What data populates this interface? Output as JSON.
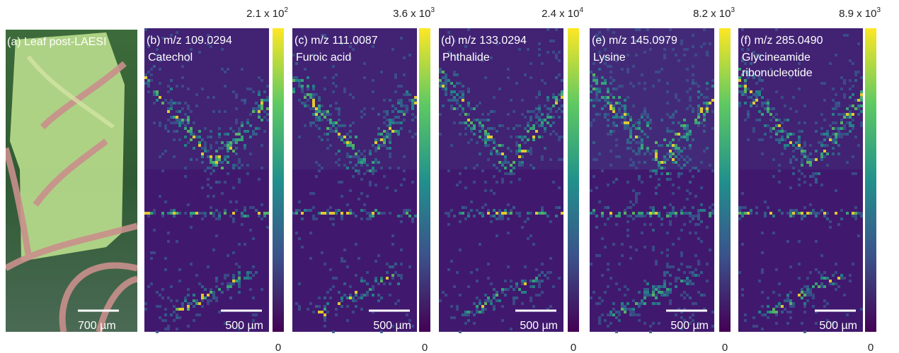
{
  "panels": [
    {
      "label": "(a) Leaf post-LAESI",
      "scale_bar": "700 µm"
    },
    {
      "label": "(b) m/z 109.0294",
      "compound": [
        "Catechol"
      ],
      "scale_bar": "500 µm",
      "colorbar": {
        "max": {
          "base": "2.1 x 10",
          "exponent": "2"
        },
        "min": "0"
      }
    },
    {
      "label": "(c) m/z 111.0087",
      "compound": [
        "Furoic acid"
      ],
      "scale_bar": "500 µm",
      "colorbar": {
        "max": {
          "base": "3.6 x 10",
          "exponent": "3"
        },
        "min": "0"
      }
    },
    {
      "label": "(d) m/z 133.0294",
      "compound": [
        "Phthalide"
      ],
      "scale_bar": "500 µm",
      "colorbar": {
        "max": {
          "base": "2.4 x 10",
          "exponent": "4"
        },
        "min": "0"
      }
    },
    {
      "label": "(e) m/z 145.0979",
      "compound": [
        "Lysine"
      ],
      "scale_bar": "500 µm",
      "colorbar": {
        "max": {
          "base": "8.2 x 10",
          "exponent": "3"
        },
        "min": "0"
      }
    },
    {
      "label": "(f) m/z 285.0490",
      "compound": [
        "Glycineamide",
        "ribonucleotide"
      ],
      "scale_bar": "500 µm",
      "colorbar": {
        "max": {
          "base": "8.9 x 10",
          "exponent": "3"
        },
        "min": "0"
      }
    }
  ]
}
